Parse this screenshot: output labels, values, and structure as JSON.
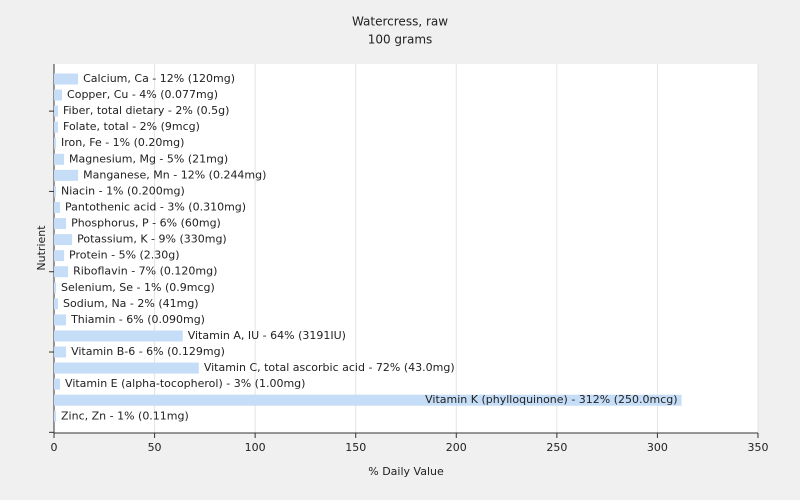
{
  "chart_data": {
    "type": "hbar",
    "title": "Watercress, raw",
    "subtitle": "100 grams",
    "x_label": "% Daily Value",
    "y_label": "Nutrient",
    "color": "#c6ddf7",
    "values": [
      12,
      4,
      2,
      2,
      1,
      5,
      12,
      1,
      3,
      6,
      9,
      5,
      7,
      1,
      2,
      6,
      64,
      6,
      72,
      3,
      312,
      1
    ],
    "value_labels": [
      "Calcium, Ca - 12% (120mg)",
      "Copper, Cu - 4% (0.077mg)",
      "Fiber, total dietary - 2% (0.5g)",
      "Folate, total - 2% (9mcg)",
      "Iron, Fe - 1% (0.20mg)",
      "Magnesium, Mg - 5% (21mg)",
      "Manganese, Mn - 12% (0.244mg)",
      "Niacin - 1% (0.200mg)",
      "Pantothenic acid - 3% (0.310mg)",
      "Phosphorus, P - 6% (60mg)",
      "Potassium, K - 9% (330mg)",
      "Protein - 5% (2.30g)",
      "Riboflavin - 7% (0.120mg)",
      "Selenium, Se - 1% (0.9mcg)",
      "Sodium, Na - 2% (41mg)",
      "Thiamin - 6% (0.090mg)",
      "Vitamin A, IU - 64% (3191IU)",
      "Vitamin B-6 - 6% (0.129mg)",
      "Vitamin C, total ascorbic acid - 72% (43.0mg)",
      "Vitamin E (alpha-tocopherol) - 3% (1.00mg)",
      "Vitamin K (phylloquinone) - 312% (250.0mcg)",
      "Zinc, Zn - 1% (0.11mg)"
    ],
    "xlim": [
      0,
      350
    ],
    "xticks": [
      0,
      50,
      100,
      150,
      200,
      250,
      300,
      350
    ],
    "grid": true
  }
}
